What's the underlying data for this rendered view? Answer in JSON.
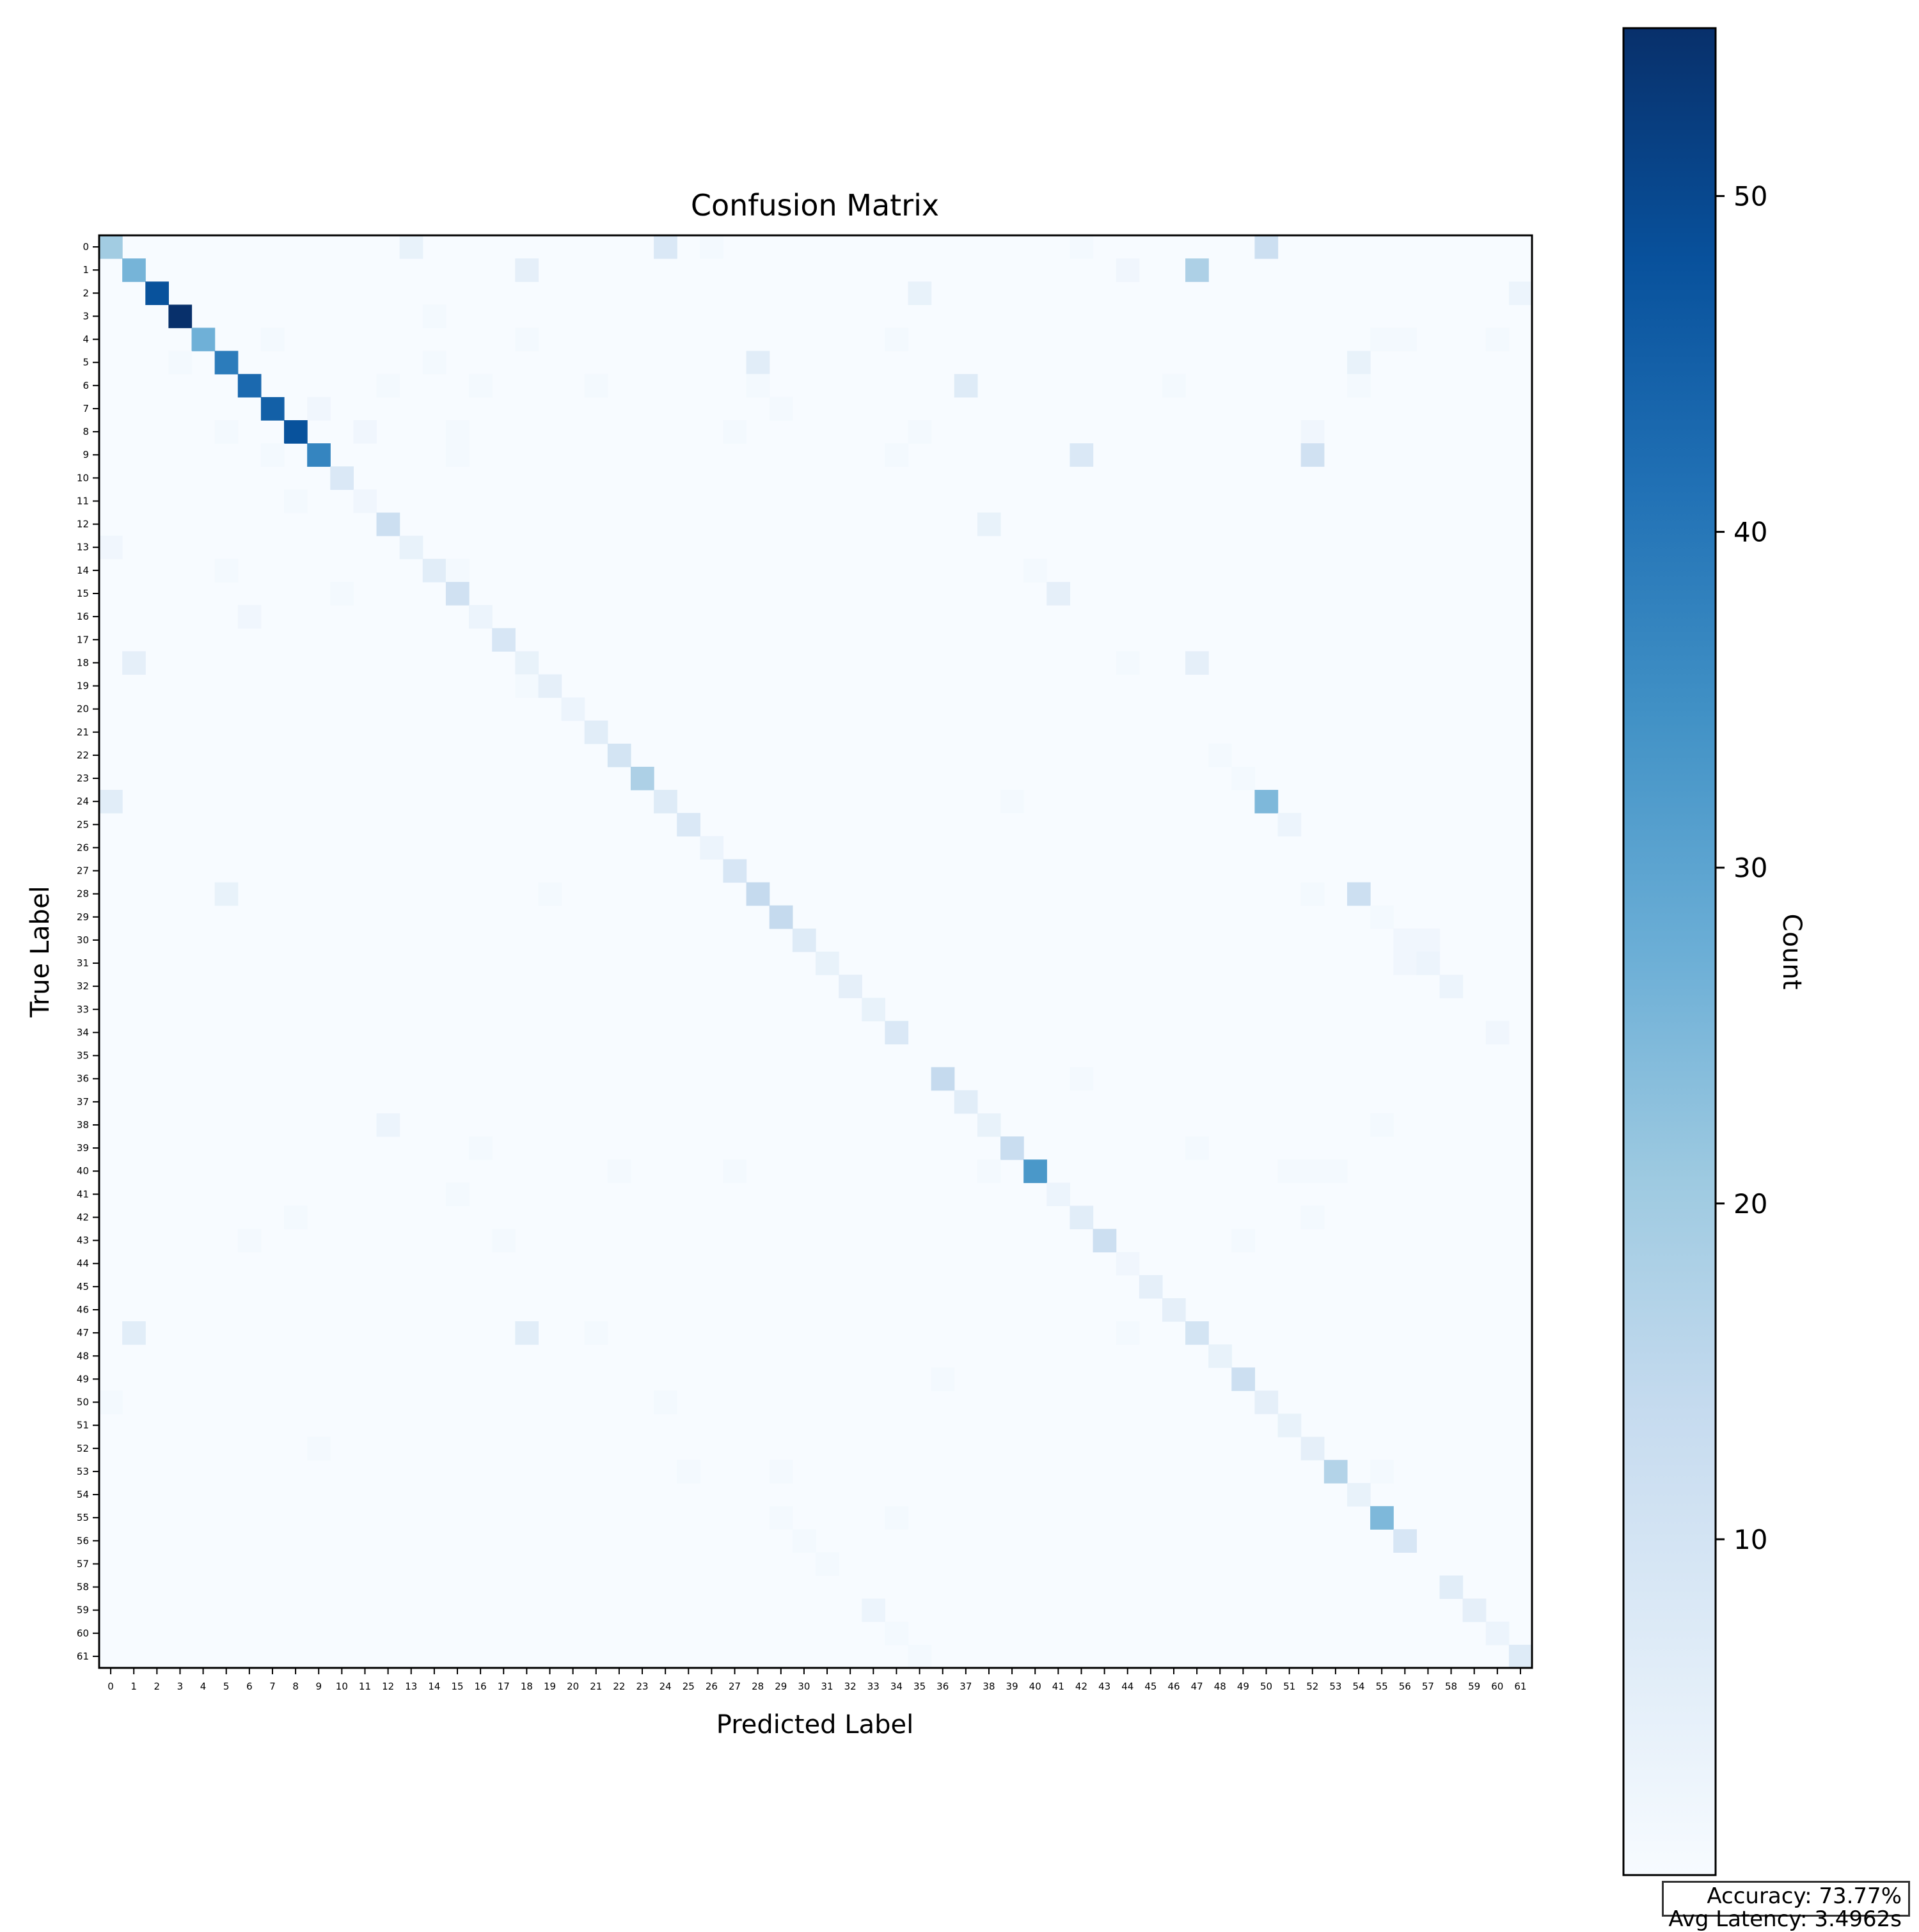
{
  "chart_data": {
    "type": "heatmap",
    "title": "Confusion Matrix",
    "xlabel": "Predicted Label",
    "ylabel": "True Label",
    "colorbar_label": "Count",
    "colormap": "Blues",
    "vmin": 0,
    "vmax": 55,
    "colorbar_ticks": [
      10,
      20,
      30,
      40,
      50
    ],
    "n_classes": 62,
    "x_tick_labels": [
      "0",
      "1",
      "2",
      "3",
      "4",
      "5",
      "6",
      "7",
      "8",
      "9",
      "10",
      "11",
      "12",
      "13",
      "14",
      "15",
      "16",
      "17",
      "18",
      "19",
      "20",
      "21",
      "22",
      "23",
      "24",
      "25",
      "26",
      "27",
      "28",
      "29",
      "30",
      "31",
      "32",
      "33",
      "34",
      "35",
      "36",
      "37",
      "38",
      "39",
      "40",
      "41",
      "42",
      "43",
      "44",
      "45",
      "46",
      "47",
      "48",
      "49",
      "50",
      "51",
      "52",
      "53",
      "54",
      "55",
      "56",
      "57",
      "58",
      "59",
      "60",
      "61"
    ],
    "y_tick_labels": [
      "0",
      "1",
      "2",
      "3",
      "4",
      "5",
      "6",
      "7",
      "8",
      "9",
      "10",
      "11",
      "12",
      "13",
      "14",
      "15",
      "16",
      "17",
      "18",
      "19",
      "20",
      "21",
      "22",
      "23",
      "24",
      "25",
      "26",
      "27",
      "28",
      "29",
      "30",
      "31",
      "32",
      "33",
      "34",
      "35",
      "36",
      "37",
      "38",
      "39",
      "40",
      "41",
      "42",
      "43",
      "44",
      "45",
      "46",
      "47",
      "48",
      "49",
      "50",
      "51",
      "52",
      "53",
      "54",
      "55",
      "56",
      "57",
      "58",
      "59",
      "60",
      "61"
    ],
    "diagonal": [
      20,
      26,
      48,
      55,
      27,
      39,
      43,
      45,
      48,
      37,
      8,
      2,
      12,
      4,
      6,
      11,
      3,
      9,
      4,
      5,
      3,
      6,
      10,
      18,
      7,
      8,
      3,
      9,
      14,
      14,
      7,
      4,
      5,
      4,
      8,
      0,
      14,
      6,
      4,
      13,
      33,
      3,
      6,
      12,
      2,
      5,
      5,
      10,
      4,
      12,
      5,
      4,
      5,
      17,
      4,
      25,
      9,
      0,
      6,
      5,
      3,
      7
    ],
    "off_diagonal": [
      [
        0,
        13,
        4
      ],
      [
        0,
        24,
        8
      ],
      [
        0,
        26,
        1
      ],
      [
        0,
        42,
        1
      ],
      [
        0,
        50,
        12
      ],
      [
        1,
        18,
        5
      ],
      [
        1,
        44,
        2
      ],
      [
        1,
        47,
        18
      ],
      [
        2,
        35,
        4
      ],
      [
        2,
        61,
        3
      ],
      [
        3,
        14,
        1
      ],
      [
        4,
        7,
        1
      ],
      [
        4,
        18,
        1
      ],
      [
        4,
        34,
        1
      ],
      [
        4,
        55,
        1
      ],
      [
        4,
        56,
        1
      ],
      [
        4,
        60,
        1
      ],
      [
        5,
        3,
        1
      ],
      [
        5,
        14,
        1
      ],
      [
        5,
        28,
        6
      ],
      [
        5,
        54,
        4
      ],
      [
        6,
        12,
        1
      ],
      [
        6,
        16,
        1
      ],
      [
        6,
        21,
        1
      ],
      [
        6,
        28,
        1
      ],
      [
        6,
        37,
        7
      ],
      [
        6,
        46,
        1
      ],
      [
        6,
        54,
        1
      ],
      [
        7,
        9,
        2
      ],
      [
        7,
        29,
        1
      ],
      [
        8,
        5,
        1
      ],
      [
        8,
        11,
        2
      ],
      [
        8,
        15,
        1
      ],
      [
        8,
        27,
        1
      ],
      [
        8,
        35,
        1
      ],
      [
        8,
        52,
        2
      ],
      [
        9,
        7,
        1
      ],
      [
        9,
        15,
        1
      ],
      [
        9,
        34,
        1
      ],
      [
        9,
        42,
        8
      ],
      [
        9,
        52,
        11
      ],
      [
        11,
        8,
        1
      ],
      [
        12,
        38,
        4
      ],
      [
        13,
        0,
        2
      ],
      [
        14,
        5,
        1
      ],
      [
        14,
        15,
        1
      ],
      [
        14,
        40,
        1
      ],
      [
        15,
        10,
        1
      ],
      [
        15,
        41,
        5
      ],
      [
        16,
        6,
        2
      ],
      [
        18,
        1,
        5
      ],
      [
        18,
        44,
        1
      ],
      [
        18,
        47,
        5
      ],
      [
        19,
        18,
        1
      ],
      [
        22,
        48,
        1
      ],
      [
        23,
        49,
        1
      ],
      [
        24,
        0,
        6
      ],
      [
        24,
        39,
        1
      ],
      [
        24,
        50,
        25
      ],
      [
        25,
        51,
        3
      ],
      [
        28,
        5,
        4
      ],
      [
        28,
        19,
        1
      ],
      [
        28,
        52,
        1
      ],
      [
        28,
        54,
        12
      ],
      [
        29,
        55,
        1
      ],
      [
        30,
        56,
        2
      ],
      [
        30,
        57,
        2
      ],
      [
        31,
        56,
        2
      ],
      [
        31,
        57,
        3
      ],
      [
        32,
        58,
        3
      ],
      [
        34,
        60,
        2
      ],
      [
        36,
        42,
        1
      ],
      [
        38,
        12,
        3
      ],
      [
        38,
        55,
        1
      ],
      [
        39,
        16,
        1
      ],
      [
        39,
        47,
        1
      ],
      [
        40,
        22,
        1
      ],
      [
        40,
        27,
        1
      ],
      [
        40,
        38,
        1
      ],
      [
        40,
        51,
        1
      ],
      [
        40,
        52,
        1
      ],
      [
        40,
        53,
        1
      ],
      [
        41,
        15,
        1
      ],
      [
        42,
        8,
        1
      ],
      [
        42,
        52,
        1
      ],
      [
        43,
        6,
        1
      ],
      [
        43,
        17,
        1
      ],
      [
        43,
        49,
        1
      ],
      [
        47,
        1,
        6
      ],
      [
        47,
        18,
        6
      ],
      [
        47,
        21,
        1
      ],
      [
        47,
        44,
        1
      ],
      [
        49,
        36,
        1
      ],
      [
        50,
        0,
        1
      ],
      [
        50,
        24,
        1
      ],
      [
        52,
        9,
        1
      ],
      [
        53,
        25,
        1
      ],
      [
        53,
        29,
        1
      ],
      [
        53,
        55,
        1
      ],
      [
        55,
        29,
        1
      ],
      [
        55,
        34,
        1
      ],
      [
        56,
        30,
        1
      ],
      [
        57,
        31,
        1
      ],
      [
        59,
        33,
        3
      ],
      [
        60,
        34,
        1
      ],
      [
        61,
        35,
        1
      ]
    ]
  },
  "stats": {
    "accuracy": "Accuracy: 73.77%",
    "latency": "Avg Latency: 3.4962s"
  }
}
